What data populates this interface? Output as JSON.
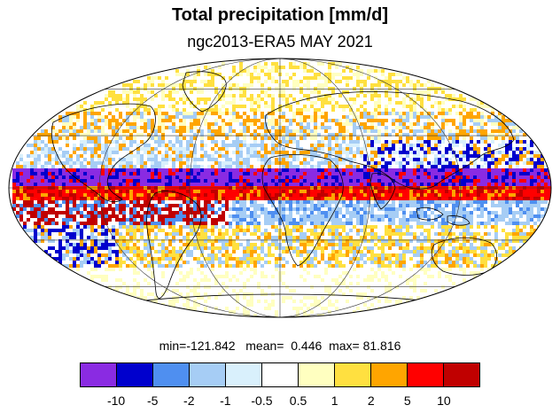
{
  "title": "Total precipitation [mm/d]",
  "subtitle": "ngc2013-ERA5 MAY 2021",
  "stats": {
    "min_label": "min=",
    "min": "-121.842",
    "mean_label": "mean=",
    "mean": "0.446",
    "max_label": "max=",
    "max": "81.816"
  },
  "map": {
    "projection": "mollweide",
    "graticule_lon_step_deg": 60,
    "graticule_lat_step_deg": 30
  },
  "colorbar": {
    "colors": [
      "#8a2be2",
      "#0000cd",
      "#4f8ff0",
      "#a6cdf5",
      "#d9f0fc",
      "#ffffff",
      "#ffffc0",
      "#ffe040",
      "#ffa500",
      "#ff0000",
      "#c00000"
    ],
    "ticks": [
      "-10",
      "-5",
      "-2",
      "-1",
      "-0.5",
      "0.5",
      "1",
      "2",
      "5",
      "10"
    ]
  }
}
